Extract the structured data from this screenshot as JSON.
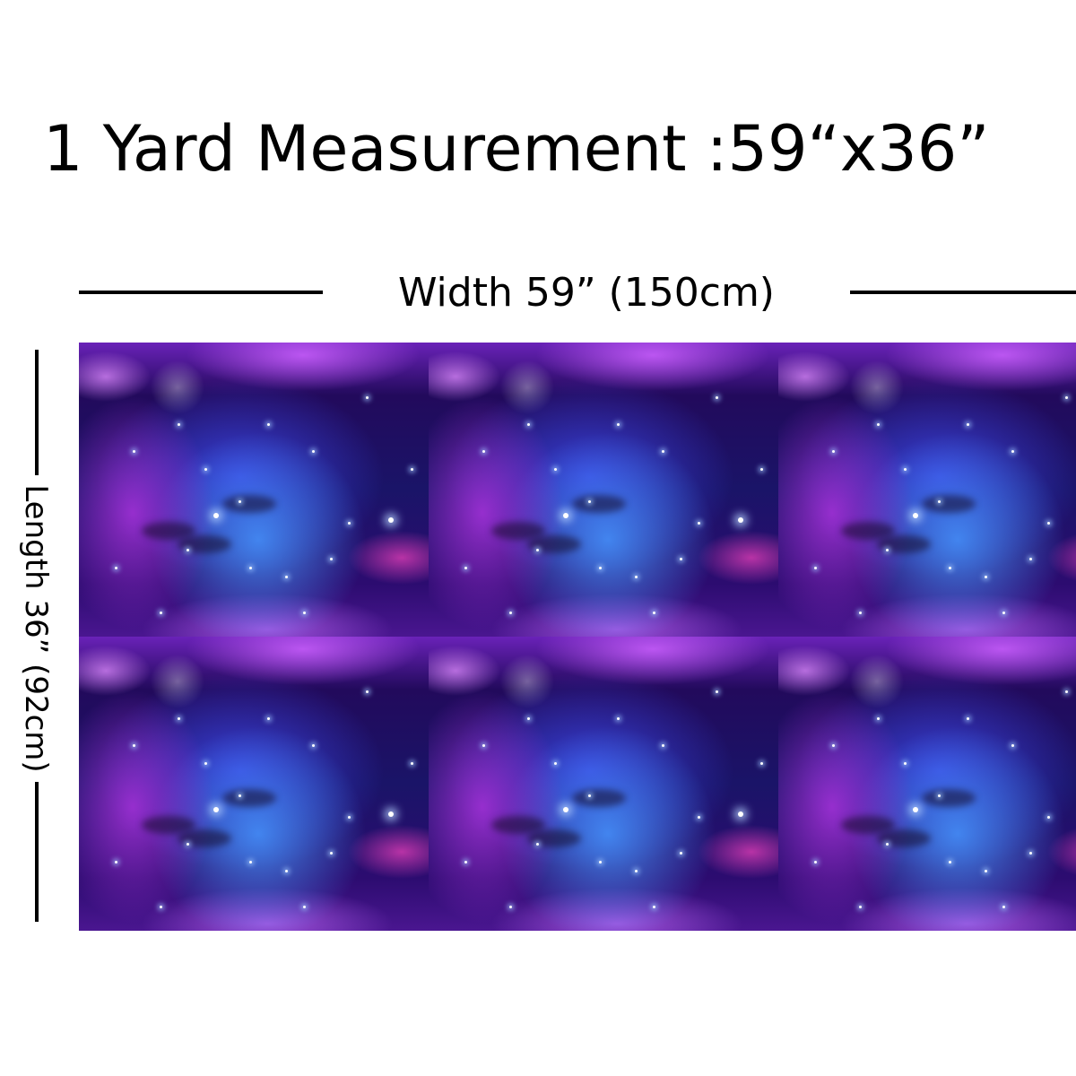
{
  "title": "1 Yard Measurement :59“x36”",
  "width_label": "Width 59”  (150cm)",
  "length_label": "Length 36”  (92cm)",
  "fabric": {
    "pattern": "galaxy-nebula",
    "colors": {
      "deep": "#1a0c4a",
      "purple": "#aa32dc",
      "blue": "#4696ff",
      "magenta": "#dc3cb4"
    }
  }
}
